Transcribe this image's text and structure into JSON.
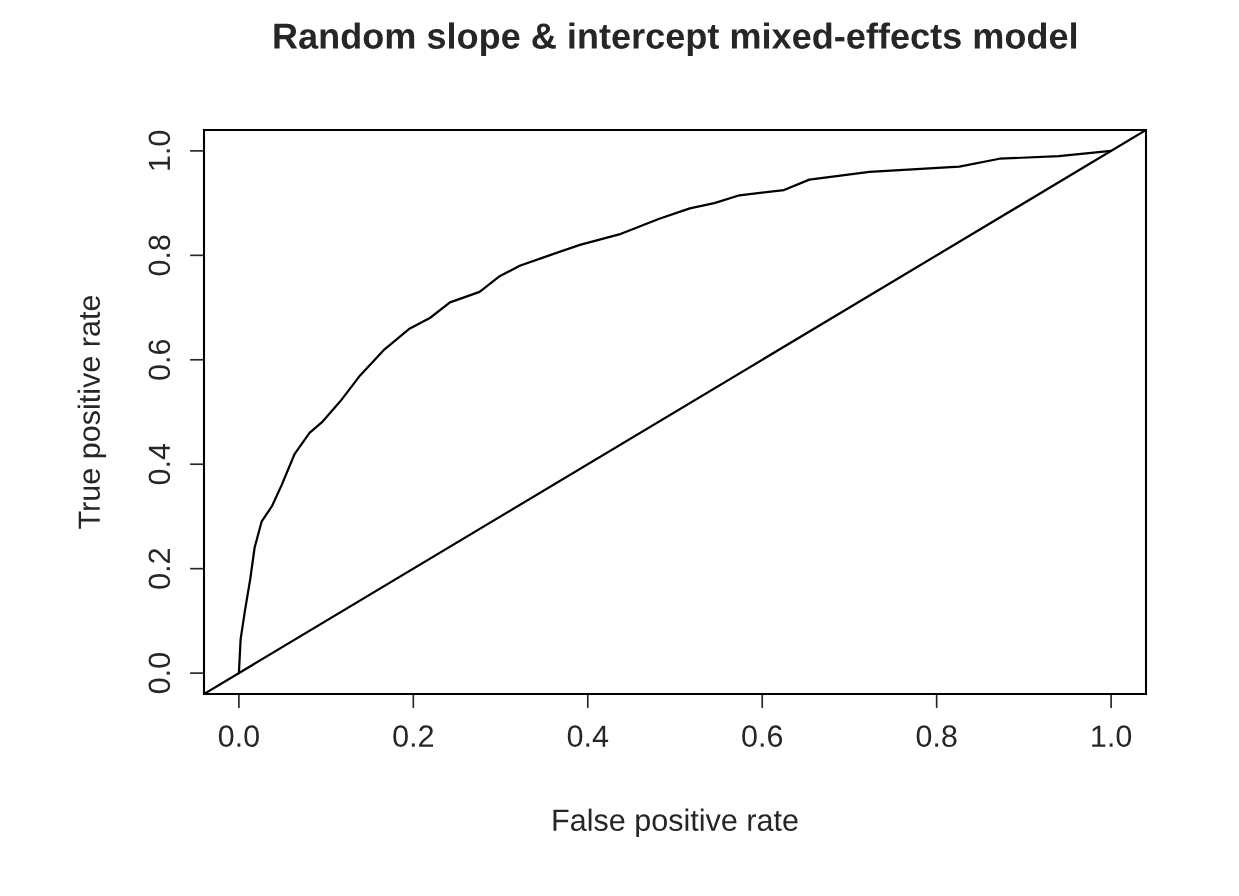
{
  "chart_data": {
    "type": "line",
    "title": "Random slope & intercept mixed-effects model",
    "xlabel": "False positive rate",
    "ylabel": "True positive rate",
    "xlim": [
      -0.04,
      1.04
    ],
    "ylim": [
      -0.04,
      1.04
    ],
    "xticks": [
      {
        "value": 0,
        "label": "0.0"
      },
      {
        "value": 0.2,
        "label": "0.2"
      },
      {
        "value": 0.4,
        "label": "0.4"
      },
      {
        "value": 0.6,
        "label": "0.6"
      },
      {
        "value": 0.8,
        "label": "0.8"
      },
      {
        "value": 1,
        "label": "1.0"
      }
    ],
    "yticks": [
      {
        "value": 0,
        "label": "0.0"
      },
      {
        "value": 0.2,
        "label": "0.2"
      },
      {
        "value": 0.4,
        "label": "0.4"
      },
      {
        "value": 0.6,
        "label": "0.6"
      },
      {
        "value": 0.8,
        "label": "0.8"
      },
      {
        "value": 1,
        "label": "1.0"
      }
    ],
    "grid": false,
    "legend": false,
    "marker": "none",
    "line_style": "solid",
    "series": [
      {
        "color": "#000000",
        "x": [
          0,
          0.002,
          0.007,
          0.013,
          0.018,
          0.026,
          0.038,
          0.049,
          0.064,
          0.081,
          0.095,
          0.116,
          0.139,
          0.167,
          0.196,
          0.219,
          0.242,
          0.276,
          0.299,
          0.322,
          0.356,
          0.391,
          0.436,
          0.482,
          0.517,
          0.545,
          0.574,
          0.625,
          0.654,
          0.723,
          0.826,
          0.872,
          0.94,
          1
        ],
        "values": [
          0,
          0.065,
          0.12,
          0.18,
          0.24,
          0.29,
          0.32,
          0.36,
          0.42,
          0.46,
          0.48,
          0.52,
          0.57,
          0.62,
          0.66,
          0.68,
          0.71,
          0.73,
          0.76,
          0.78,
          0.8,
          0.82,
          0.84,
          0.87,
          0.89,
          0.9,
          0.915,
          0.925,
          0.945,
          0.96,
          0.97,
          0.985,
          0.99,
          1
        ]
      },
      {
        "color": "#000000",
        "x": [
          -0.04,
          1.04
        ],
        "values": [
          -0.04,
          1.04
        ]
      }
    ]
  }
}
